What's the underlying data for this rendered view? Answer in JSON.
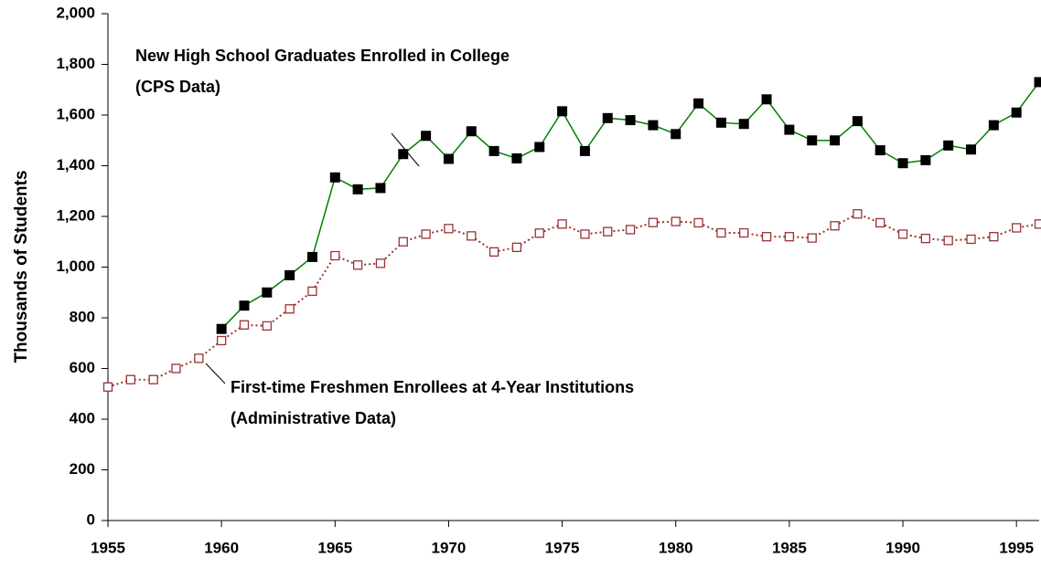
{
  "chart_data": {
    "type": "line",
    "y_label": "Thousands of Students",
    "x": [
      1955,
      1956,
      1957,
      1958,
      1959,
      1960,
      1961,
      1962,
      1963,
      1964,
      1965,
      1966,
      1967,
      1968,
      1969,
      1970,
      1971,
      1972,
      1973,
      1974,
      1975,
      1976,
      1977,
      1978,
      1979,
      1980,
      1981,
      1982,
      1983,
      1984,
      1985,
      1986,
      1987,
      1988,
      1989,
      1990,
      1991,
      1992,
      1993,
      1994,
      1995,
      1996
    ],
    "series": [
      {
        "name": "New High School Graduates Enrolled in College",
        "note": "(CPS Data)",
        "color": "#008000",
        "marker_color": "#000000",
        "values": [
          null,
          null,
          null,
          null,
          null,
          756,
          848,
          900,
          968,
          1040,
          1354,
          1307,
          1312,
          1446,
          1518,
          1427,
          1536,
          1458,
          1429,
          1474,
          1615,
          1458,
          1588,
          1580,
          1560,
          1525,
          1646,
          1570,
          1565,
          1662,
          1542,
          1500,
          1500,
          1576,
          1461,
          1410,
          1422,
          1480,
          1464,
          1560,
          1610,
          1730
        ]
      },
      {
        "name": "First-time Freshmen Enrollees at 4-Year Institutions",
        "note": "(Administrative Data)",
        "color": "#993333",
        "dashed": true,
        "values": [
          527,
          556,
          556,
          600,
          640,
          710,
          772,
          768,
          835,
          905,
          1045,
          1008,
          1015,
          1100,
          1130,
          1152,
          1123,
          1060,
          1078,
          1134,
          1170,
          1130,
          1140,
          1148,
          1176,
          1180,
          1175,
          1135,
          1135,
          1120,
          1120,
          1115,
          1163,
          1210,
          1175,
          1130,
          1113,
          1105,
          1110,
          1120,
          1155,
          1170
        ]
      }
    ],
    "xlim": [
      1955,
      1996
    ],
    "xticks": [
      1955,
      1960,
      1965,
      1970,
      1975,
      1980,
      1985,
      1990,
      1995
    ],
    "ylim": [
      0,
      2000
    ],
    "yticks": [
      0,
      200,
      400,
      600,
      800,
      {
        "value": 1000,
        "label": "1,000"
      },
      {
        "value": 1200,
        "label": "1,200"
      },
      {
        "value": 1400,
        "label": "1,400"
      },
      {
        "value": 1600,
        "label": "1,600"
      },
      {
        "value": 1800,
        "label": "1,800"
      },
      {
        "value": 2000,
        "label": "2,000"
      }
    ],
    "grid": false
  }
}
